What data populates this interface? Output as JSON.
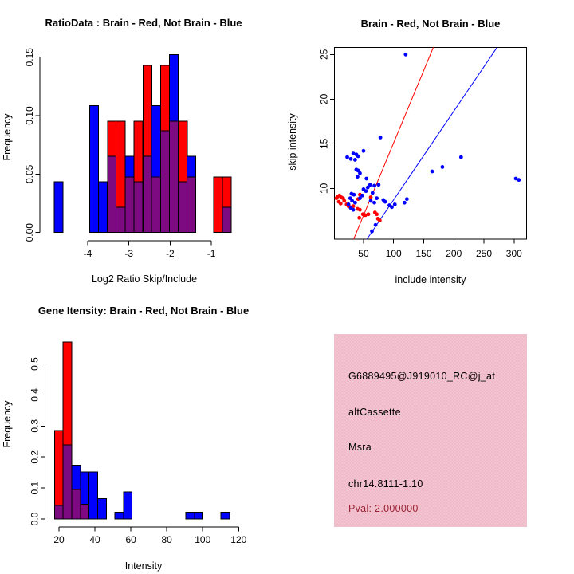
{
  "colors": {
    "red": "#FF0000",
    "blue": "#0000FF",
    "overlap_purple": "#7D0A80",
    "panel_pink": "#F2BAC8",
    "pval_text": "#9B2335",
    "axis": "#000000",
    "background": "#FFFFFF"
  },
  "chart_data": [
    {
      "type": "bar",
      "subtype": "overlaid-histogram",
      "title": "RatioData : Brain - Red, Not Brain - Blue",
      "xlabel": "Log2 Ratio Skip/Include",
      "ylabel": "Frequency",
      "legend": [
        {
          "name": "Brain",
          "color": "red"
        },
        {
          "name": "Not Brain",
          "color": "blue"
        }
      ],
      "xticks": [
        {
          "v": -4,
          "label": "-4"
        },
        {
          "v": -3,
          "label": "-3"
        },
        {
          "v": -2,
          "label": "-2"
        },
        {
          "v": -1,
          "label": "-1"
        }
      ],
      "yticks": [
        {
          "v": 0,
          "label": "0.00"
        },
        {
          "v": 0.05,
          "label": "0.05"
        },
        {
          "v": 0.1,
          "label": "0.10"
        },
        {
          "v": 0.15,
          "label": "0.15"
        }
      ],
      "xlim": [
        -4.9,
        -0.45
      ],
      "ylim": [
        0,
        0.155
      ],
      "grid": false,
      "bin_width": 0.215,
      "bins": [
        {
          "x": -4.81,
          "red": 0,
          "blue": 0.0435
        },
        {
          "x": -3.95,
          "red": 0,
          "blue": 0.1087
        },
        {
          "x": -3.74,
          "red": 0,
          "blue": 0.0435
        },
        {
          "x": -3.52,
          "red": 0.0952,
          "blue": 0.0652
        },
        {
          "x": -3.31,
          "red": 0.0952,
          "blue": 0.0217
        },
        {
          "x": -3.09,
          "red": 0.0476,
          "blue": 0.0652
        },
        {
          "x": -2.88,
          "red": 0.0952,
          "blue": 0.0435
        },
        {
          "x": -2.66,
          "red": 0.1429,
          "blue": 0.0652
        },
        {
          "x": -2.45,
          "red": 0.0476,
          "blue": 0.1087
        },
        {
          "x": -2.23,
          "red": 0.1429,
          "blue": 0.087
        },
        {
          "x": -2.02,
          "red": 0.0952,
          "blue": 0.1522
        },
        {
          "x": -1.8,
          "red": 0.0952,
          "blue": 0.0435
        },
        {
          "x": -1.59,
          "red": 0.0476,
          "blue": 0.0652
        },
        {
          "x": -0.94,
          "red": 0.0476,
          "blue": 0
        },
        {
          "x": -0.73,
          "red": 0.0476,
          "blue": 0.0217
        }
      ]
    },
    {
      "type": "scatter",
      "title": "Brain - Red, Not Brain - Blue",
      "xlabel": "include intensity",
      "ylabel": "skip intensity",
      "xticks": [
        {
          "v": 50,
          "label": "50"
        },
        {
          "v": 100,
          "label": "100"
        },
        {
          "v": 150,
          "label": "150"
        },
        {
          "v": 200,
          "label": "200"
        },
        {
          "v": 250,
          "label": "250"
        },
        {
          "v": 300,
          "label": "300"
        }
      ],
      "yticks": [
        {
          "v": 10,
          "label": "10"
        },
        {
          "v": 15,
          "label": "15"
        },
        {
          "v": 20,
          "label": "20"
        },
        {
          "v": 25,
          "label": "25"
        }
      ],
      "xlim": [
        1.7,
        321
      ],
      "ylim": [
        4.31,
        25.8
      ],
      "grid": false,
      "series": [
        {
          "name": "Brain",
          "color": "red",
          "points": [
            [
              5,
              8.9
            ],
            [
              7,
              9.1
            ],
            [
              10,
              9.2
            ],
            [
              13,
              9.0
            ],
            [
              16,
              8.9
            ],
            [
              9,
              8.5
            ],
            [
              12,
              8.3
            ],
            [
              18,
              8.6
            ],
            [
              22,
              8.2
            ],
            [
              25,
              8.0
            ],
            [
              28,
              7.9
            ],
            [
              33,
              8.0
            ],
            [
              41,
              8.8
            ],
            [
              44,
              9.3
            ],
            [
              40,
              7.7
            ],
            [
              44,
              7.6
            ],
            [
              49,
              7.1
            ],
            [
              53,
              7.0
            ],
            [
              58,
              7.1
            ],
            [
              62,
              9.0
            ],
            [
              69,
              7.3
            ],
            [
              72,
              7.1
            ],
            [
              74,
              6.6
            ],
            [
              77,
              6.4
            ],
            [
              43,
              6.7
            ]
          ]
        },
        {
          "name": "Not Brain",
          "color": "blue",
          "points": [
            [
              120,
              25.0
            ],
            [
              78,
              15.7
            ],
            [
              23,
              13.5
            ],
            [
              29,
              13.3
            ],
            [
              33,
              13.9
            ],
            [
              36,
              13.2
            ],
            [
              38,
              13.8
            ],
            [
              41,
              13.6
            ],
            [
              50,
              14.2
            ],
            [
              212,
              13.5
            ],
            [
              164,
              11.9
            ],
            [
              181,
              12.4
            ],
            [
              303,
              11.1
            ],
            [
              308,
              10.95
            ],
            [
              38,
              12.1
            ],
            [
              41,
              12.0
            ],
            [
              44,
              11.7
            ],
            [
              40,
              11.3
            ],
            [
              55,
              11.1
            ],
            [
              61,
              10.4
            ],
            [
              68,
              10.3
            ],
            [
              75,
              10.4
            ],
            [
              50,
              9.9
            ],
            [
              54,
              9.7
            ],
            [
              57,
              10.1
            ],
            [
              30,
              9.4
            ],
            [
              34,
              9.3
            ],
            [
              28,
              8.9
            ],
            [
              31,
              8.6
            ],
            [
              36,
              8.4
            ],
            [
              25,
              8.2
            ],
            [
              29,
              7.8
            ],
            [
              33,
              7.6
            ],
            [
              44,
              8.9
            ],
            [
              48,
              9.2
            ],
            [
              62,
              8.6
            ],
            [
              68,
              8.4
            ],
            [
              72,
              8.9
            ],
            [
              65,
              9.5
            ],
            [
              83,
              8.7
            ],
            [
              86,
              8.5
            ],
            [
              93,
              8.1
            ],
            [
              97,
              7.9
            ],
            [
              102,
              8.2
            ],
            [
              118,
              8.4
            ],
            [
              122,
              8.8
            ],
            [
              64,
              5.2
            ],
            [
              70,
              5.9
            ]
          ]
        }
      ],
      "lines": [
        {
          "name": "brain-fit",
          "color": "red",
          "x1": 33.6,
          "y1": 4.31,
          "x2": 166,
          "y2": 25.8
        },
        {
          "name": "notbrain-fit",
          "color": "blue",
          "x1": 55.7,
          "y1": 4.31,
          "x2": 271.9,
          "y2": 25.8
        }
      ]
    },
    {
      "type": "bar",
      "subtype": "overlaid-histogram",
      "title": "Gene Itensity: Brain - Red, Not Brain - Blue",
      "xlabel": "Intensity",
      "ylabel": "Frequency",
      "legend": [
        {
          "name": "Brain",
          "color": "red"
        },
        {
          "name": "Not Brain",
          "color": "blue"
        }
      ],
      "xticks": [
        {
          "v": 20,
          "label": "20"
        },
        {
          "v": 40,
          "label": "40"
        },
        {
          "v": 60,
          "label": "60"
        },
        {
          "v": 80,
          "label": "80"
        },
        {
          "v": 100,
          "label": "100"
        },
        {
          "v": 120,
          "label": "120"
        }
      ],
      "yticks": [
        {
          "v": 0,
          "label": "0.0"
        },
        {
          "v": 0.1,
          "label": "0.1"
        },
        {
          "v": 0.2,
          "label": "0.2"
        },
        {
          "v": 0.3,
          "label": "0.3"
        },
        {
          "v": 0.4,
          "label": "0.4"
        },
        {
          "v": 0.5,
          "label": "0.5"
        }
      ],
      "xlim": [
        15,
        122
      ],
      "ylim": [
        0,
        0.58
      ],
      "grid": false,
      "bin_width": 4.8,
      "bins": [
        {
          "x": 17.5,
          "red": 0.2857,
          "blue": 0.0435
        },
        {
          "x": 22.3,
          "red": 0.5714,
          "blue": 0.2391
        },
        {
          "x": 27.1,
          "red": 0.0952,
          "blue": 0.1739
        },
        {
          "x": 31.9,
          "red": 0.0476,
          "blue": 0.1522
        },
        {
          "x": 36.7,
          "red": 0,
          "blue": 0.1522
        },
        {
          "x": 41.5,
          "red": 0,
          "blue": 0.0652
        },
        {
          "x": 51.1,
          "red": 0,
          "blue": 0.0217
        },
        {
          "x": 55.9,
          "red": 0,
          "blue": 0.087
        },
        {
          "x": 90.6,
          "red": 0,
          "blue": 0.0217
        },
        {
          "x": 95.4,
          "red": 0,
          "blue": 0.0217
        },
        {
          "x": 110.2,
          "red": 0,
          "blue": 0.0217
        }
      ]
    },
    {
      "type": "info-panel",
      "lines": [
        "G6889495@J919010_RC@j_at",
        "altCassette",
        "Msra",
        "chr14.8111-1.10",
        "Pval: 2.000000"
      ]
    }
  ]
}
